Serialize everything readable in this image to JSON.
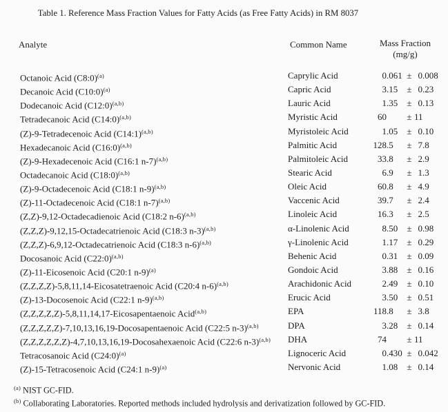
{
  "page": {
    "title": "Table 1.  Reference Mass Fraction Values for Fatty Acids (as Free Fatty Acids) in RM 8037"
  },
  "table": {
    "headers": {
      "analyte": "Analyte",
      "common_name": "Common Name",
      "mass_fraction": "Mass Fraction",
      "mass_fraction_units": "(mg/g)"
    },
    "plus_minus": "±",
    "rows": [
      {
        "analyte": "Octanoic Acid (C8:0)",
        "marker": "(a)",
        "common_name": "Caprylic Acid",
        "value": "0.061",
        "uncertainty": "0.008"
      },
      {
        "analyte": "Decanoic Acid (C10:0)",
        "marker": "(a)",
        "common_name": "Capric Acid",
        "value": "3.15",
        "uncertainty": "0.23"
      },
      {
        "analyte": "Dodecanoic Acid (C12:0)",
        "marker": "(a,b)",
        "common_name": "Lauric Acid",
        "value": "1.35",
        "uncertainty": "0.13"
      },
      {
        "analyte": "Tetradecanoic Acid (C14:0)",
        "marker": "(a,b)",
        "common_name": "Myristic Acid",
        "value": "60",
        "uncertainty": "11"
      },
      {
        "analyte": "(Z)-9-Tetradecenoic Acid (C14:1)",
        "marker": "(a,b)",
        "common_name": "Myristoleic Acid",
        "value": "1.05",
        "uncertainty": "0.10"
      },
      {
        "analyte": "Hexadecanoic Acid (C16:0)",
        "marker": "(a,b)",
        "common_name": "Palmitic Acid",
        "value": "128.5",
        "uncertainty": "7.8"
      },
      {
        "analyte": "(Z)-9-Hexadecenoic Acid (C16:1 n-7)",
        "marker": "(a,b)",
        "common_name": "Palmitoleic Acid",
        "value": "33.8",
        "uncertainty": "2.9"
      },
      {
        "analyte": "Octadecanoic Acid (C18:0)",
        "marker": "(a,b)",
        "common_name": "Stearic Acid",
        "value": "6.9",
        "uncertainty": "1.3"
      },
      {
        "analyte": "(Z)-9-Octadecenoic Acid (C18:1 n-9)",
        "marker": "(a,b)",
        "common_name": "Oleic Acid",
        "value": "60.8",
        "uncertainty": "4.9"
      },
      {
        "analyte": "(Z)-11-Octadecenoic Acid (C18:1 n-7)",
        "marker": "(a,b)",
        "common_name": "Vaccenic Acid",
        "value": "39.7",
        "uncertainty": "2.4"
      },
      {
        "analyte": "(Z,Z)-9,12-Octadecadienoic Acid (C18:2 n-6)",
        "marker": "(a,b)",
        "common_name": "Linoleic Acid",
        "value": "16.3",
        "uncertainty": "2.5"
      },
      {
        "analyte": "(Z,Z,Z)-9,12,15-Octadecatrienoic Acid (C18:3 n-3)",
        "marker": "(a,b)",
        "common_name": "α-Linolenic Acid",
        "value": "8.50",
        "uncertainty": "0.98"
      },
      {
        "analyte": "(Z,Z,Z)-6,9,12-Octadecatrienoic Acid (C18:3 n-6)",
        "marker": "(a,b)",
        "common_name": "γ-Linolenic Acid",
        "value": "1.17",
        "uncertainty": "0.29"
      },
      {
        "analyte": "Docosanoic Acid (C22:0)",
        "marker": "(a,b)",
        "common_name": "Behenic Acid",
        "value": "0.31",
        "uncertainty": "0.09"
      },
      {
        "analyte": "(Z)-11-Eicosenoic Acid (C20:1 n-9)",
        "marker": "(a)",
        "common_name": "Gondoic Acid",
        "value": "3.88",
        "uncertainty": "0.16"
      },
      {
        "analyte": "(Z,Z,Z,Z)-5,8,11,14-Eicosatetraenoic Acid (C20:4 n-6)",
        "marker": "(a,b)",
        "common_name": "Arachidonic Acid",
        "value": "2.49",
        "uncertainty": "0.10"
      },
      {
        "analyte": "(Z)-13-Docosenoic Acid (C22:1 n-9)",
        "marker": "(a,b)",
        "common_name": "Erucic Acid",
        "value": "3.50",
        "uncertainty": "0.51"
      },
      {
        "analyte": "(Z,Z,Z,Z,Z)-5,8,11,14,17-Eicosapentaenoic Acid",
        "marker": "(a,b)",
        "common_name": "EPA",
        "value": "118.8",
        "uncertainty": "3.8"
      },
      {
        "analyte": "(Z,Z,Z,Z,Z)-7,10,13,16,19-Docosapentaenoic Acid (C22:5 n-3)",
        "marker": "(a,b)",
        "common_name": "DPA",
        "value": "3.28",
        "uncertainty": "0.14"
      },
      {
        "analyte": "(Z,Z,Z,Z,Z,Z)-4,7,10,13,16,19-Docosahexaenoic Acid (C22:6 n-3)",
        "marker": "(a,b)",
        "common_name": "DHA",
        "value": "74",
        "uncertainty": "11"
      },
      {
        "analyte": "Tetracosanoic Acid (C24:0)",
        "marker": "(a)",
        "common_name": "Lignoceric Acid",
        "value": "0.430",
        "uncertainty": "0.042"
      },
      {
        "analyte": "(Z)-15-Tetracosenoic Acid (C24:1 n-9)",
        "marker": "(a)",
        "common_name": "Nervonic Acid",
        "value": "1.08",
        "uncertainty": "0.14"
      }
    ]
  },
  "footnotes": [
    {
      "marker": "(a)",
      "text": "NIST GC-FID."
    },
    {
      "marker": "(b)",
      "text": "Collaborating Laboratories. Reported methods included hydrolysis and derivatization followed by GC-FID."
    }
  ]
}
